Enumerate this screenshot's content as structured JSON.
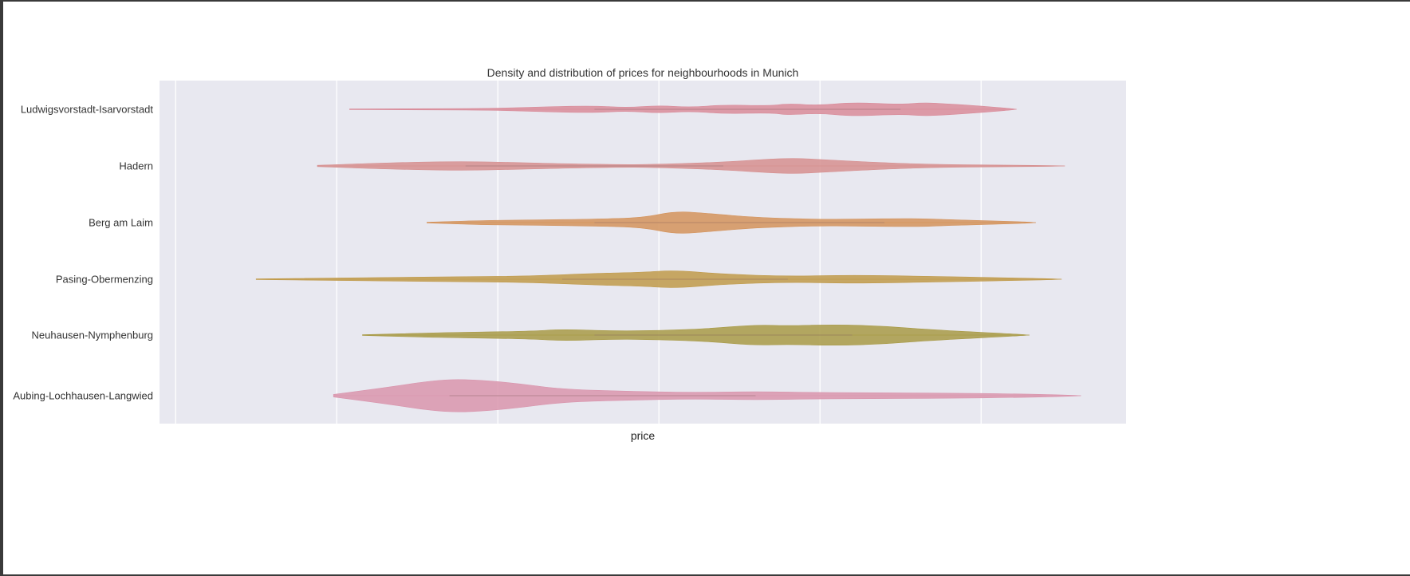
{
  "chart_data": {
    "type": "violin",
    "orientation": "horizontal",
    "title": "Density and distribution of prices for neighbourhoods in Munich",
    "xlabel": "price",
    "ylabel": "",
    "xlim": [
      -2.5,
      27.5
    ],
    "x_gridlines": [
      -2,
      3,
      8,
      13,
      18,
      23
    ],
    "x_tick_labels_shown": false,
    "grid": true,
    "background": "#e8e8f0",
    "categories": [
      "Ludwigsvorstadt-Isarvorstadt",
      "Hadern",
      "Berg am Laim",
      "Pasing-Obermenzing",
      "Neuhausen-Nymphenburg",
      "Aubing-Lochhausen-Langwied"
    ],
    "series": [
      {
        "category": "Ludwigsvorstadt-Isarvorstadt",
        "color": "#d98c9a",
        "range": [
          3.4,
          24.1
        ],
        "inner_line": [
          11,
          20.5
        ],
        "density": [
          [
            3.4,
            0.1
          ],
          [
            6,
            0.2
          ],
          [
            8,
            0.3
          ],
          [
            9.5,
            0.8
          ],
          [
            11,
            1.1
          ],
          [
            12,
            0.5
          ],
          [
            13,
            1.2
          ],
          [
            14,
            0.6
          ],
          [
            15,
            1.4
          ],
          [
            16.5,
            1.1
          ],
          [
            17,
            1.8
          ],
          [
            18,
            1.2
          ],
          [
            19,
            2.2
          ],
          [
            20.5,
            1.5
          ],
          [
            21.2,
            2.1
          ],
          [
            22,
            1.7
          ],
          [
            23,
            1.0
          ],
          [
            24.1,
            0.1
          ]
        ]
      },
      {
        "category": "Hadern",
        "color": "#d68f8f",
        "range": [
          2.4,
          25.6
        ],
        "inner_line": [
          7,
          15
        ],
        "density": [
          [
            2.4,
            0.2
          ],
          [
            4,
            0.8
          ],
          [
            5.5,
            1.2
          ],
          [
            7,
            1.4
          ],
          [
            8.5,
            1.1
          ],
          [
            10,
            0.7
          ],
          [
            12,
            0.4
          ],
          [
            13,
            0.5
          ],
          [
            15,
            1.2
          ],
          [
            16.5,
            2.2
          ],
          [
            17.3,
            2.4
          ],
          [
            18,
            2.0
          ],
          [
            20,
            1.0
          ],
          [
            21.5,
            0.5
          ],
          [
            23,
            0.3
          ],
          [
            25.6,
            0.1
          ]
        ]
      },
      {
        "category": "Berg am Laim",
        "color": "#d4935c",
        "range": [
          5.8,
          24.7
        ],
        "inner_line": [
          11,
          20
        ],
        "density": [
          [
            5.8,
            0.1
          ],
          [
            7.5,
            0.7
          ],
          [
            9,
            0.8
          ],
          [
            11,
            1.1
          ],
          [
            12.5,
            1.5
          ],
          [
            13.5,
            3.6
          ],
          [
            14.5,
            2.9
          ],
          [
            16,
            1.6
          ],
          [
            18,
            1.0
          ],
          [
            19,
            1.1
          ],
          [
            21,
            1.3
          ],
          [
            22,
            0.9
          ],
          [
            23.5,
            0.5
          ],
          [
            24.7,
            0.1
          ]
        ]
      },
      {
        "category": "Pasing-Obermenzing",
        "color": "#c09a4a",
        "range": [
          0.5,
          25.5
        ],
        "inner_line": [
          10,
          17
        ],
        "density": [
          [
            0.5,
            0.1
          ],
          [
            3,
            0.4
          ],
          [
            5,
            0.6
          ],
          [
            7,
            0.8
          ],
          [
            9,
            1.0
          ],
          [
            11,
            1.8
          ],
          [
            12.5,
            2.2
          ],
          [
            13.5,
            2.8
          ],
          [
            15,
            1.6
          ],
          [
            17,
            0.9
          ],
          [
            19,
            1.3
          ],
          [
            21.5,
            0.9
          ],
          [
            23.5,
            0.5
          ],
          [
            25.5,
            0.1
          ]
        ]
      },
      {
        "category": "Neuhausen-Nymphenburg",
        "color": "#a89a46",
        "range": [
          3.8,
          24.5
        ],
        "inner_line": [
          11,
          19
        ],
        "density": [
          [
            3.8,
            0.1
          ],
          [
            5.5,
            0.6
          ],
          [
            7,
            0.9
          ],
          [
            9,
            1.2
          ],
          [
            10,
            1.8
          ],
          [
            11.5,
            1.3
          ],
          [
            13,
            1.4
          ],
          [
            14.5,
            2.0
          ],
          [
            16,
            3.2
          ],
          [
            17,
            2.9
          ],
          [
            18.5,
            3.3
          ],
          [
            20,
            2.8
          ],
          [
            21.5,
            1.6
          ],
          [
            24.5,
            0.1
          ]
        ]
      },
      {
        "category": "Aubing-Lochhausen-Langwied",
        "color": "#d995ad",
        "range": [
          2.9,
          26.1
        ],
        "inner_line": [
          6.5,
          16
        ],
        "density": [
          [
            2.9,
            0.4
          ],
          [
            4.5,
            2.5
          ],
          [
            6,
            4.8
          ],
          [
            7,
            5.2
          ],
          [
            8.5,
            4.0
          ],
          [
            10,
            2.0
          ],
          [
            12,
            1.4
          ],
          [
            14,
            1.0
          ],
          [
            16,
            1.3
          ],
          [
            18,
            1.0
          ],
          [
            20,
            0.9
          ],
          [
            22,
            0.8
          ],
          [
            24,
            0.6
          ],
          [
            26.1,
            0.1
          ]
        ]
      }
    ]
  }
}
